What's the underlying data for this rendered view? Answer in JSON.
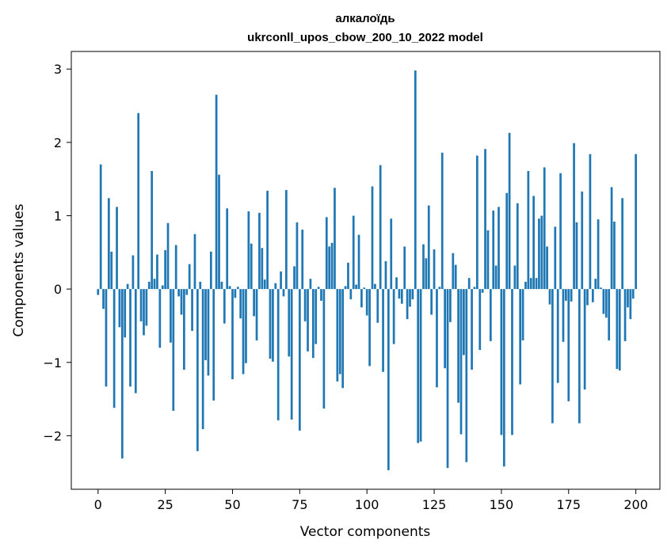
{
  "chart_data": {
    "type": "bar",
    "title_line1": "алкалоїдь",
    "title_line2": "ukrconll_upos_cbow_200_10_2022 model",
    "xlabel": "Vector components",
    "ylabel": "Components values",
    "xlim": [
      -9.95,
      208.95
    ],
    "ylim": [
      -2.73,
      3.24
    ],
    "xticks": [
      0,
      25,
      50,
      75,
      100,
      125,
      150,
      175,
      200
    ],
    "yticks": [
      -2,
      -1,
      0,
      1,
      2,
      3
    ],
    "ytick_labels": [
      "−2",
      "−1",
      "0",
      "1",
      "2",
      "3"
    ],
    "grid": false,
    "legend": "none",
    "bar_color": "#1f77b4",
    "values": [
      -0.08,
      1.7,
      -0.27,
      -1.33,
      1.24,
      0.51,
      -1.62,
      1.12,
      -0.52,
      -2.31,
      -0.66,
      0.07,
      -1.33,
      0.46,
      -1.42,
      2.4,
      -0.44,
      -0.63,
      -0.5,
      0.1,
      1.61,
      0.14,
      0.47,
      -0.8,
      0.05,
      0.53,
      0.9,
      -0.73,
      -1.66,
      0.6,
      -0.1,
      -0.35,
      -1.1,
      -0.08,
      0.34,
      -0.57,
      0.75,
      -2.21,
      0.1,
      -1.91,
      -0.97,
      -1.18,
      0.51,
      -1.52,
      2.65,
      1.56,
      0.1,
      -0.47,
      1.1,
      0.04,
      -1.23,
      -0.12,
      0.03,
      -0.4,
      -1.16,
      -1.01,
      1.06,
      0.62,
      -0.37,
      -0.7,
      1.04,
      0.56,
      0.13,
      1.34,
      -0.95,
      -0.99,
      0.08,
      -1.79,
      0.24,
      -0.1,
      1.35,
      -0.92,
      -1.78,
      0.31,
      0.91,
      -1.93,
      0.81,
      -0.44,
      -0.85,
      0.14,
      -0.94,
      -0.75,
      0.03,
      -0.16,
      -1.63,
      0.98,
      0.58,
      0.63,
      1.38,
      -1.26,
      -1.16,
      -1.35,
      0.04,
      0.36,
      -0.14,
      1.0,
      0.06,
      0.74,
      -0.25,
      0.02,
      -0.36,
      -1.05,
      1.4,
      0.07,
      -0.46,
      1.69,
      -1.13,
      0.38,
      -2.47,
      0.96,
      -0.75,
      0.16,
      -0.13,
      -0.2,
      0.58,
      -0.41,
      -0.24,
      -0.14,
      2.98,
      -2.1,
      -2.08,
      0.61,
      0.42,
      1.14,
      -0.35,
      0.54,
      -1.34,
      0.03,
      1.86,
      -1.08,
      -2.44,
      -0.45,
      0.49,
      0.33,
      -1.55,
      -1.98,
      -0.9,
      -2.36,
      0.15,
      -1.1,
      0.03,
      1.82,
      -0.83,
      -0.05,
      1.91,
      0.8,
      -0.71,
      1.07,
      0.32,
      1.12,
      -1.99,
      -2.42,
      1.31,
      2.13,
      -1.99,
      0.32,
      1.17,
      -1.3,
      -0.7,
      0.1,
      1.61,
      0.15,
      1.27,
      0.15,
      0.96,
      1.0,
      1.66,
      0.58,
      -0.21,
      -1.83,
      0.85,
      -1.28,
      1.58,
      -0.72,
      -0.16,
      -1.53,
      -0.17,
      1.99,
      0.91,
      -1.83,
      1.33,
      -1.37,
      -0.22,
      1.84,
      -0.18,
      0.14,
      0.95,
      0.02,
      -0.34,
      -0.39,
      -0.7,
      1.39,
      0.92,
      -1.09,
      -1.11,
      1.24,
      -0.71,
      -0.25,
      -0.41,
      -0.13,
      1.84
    ]
  }
}
